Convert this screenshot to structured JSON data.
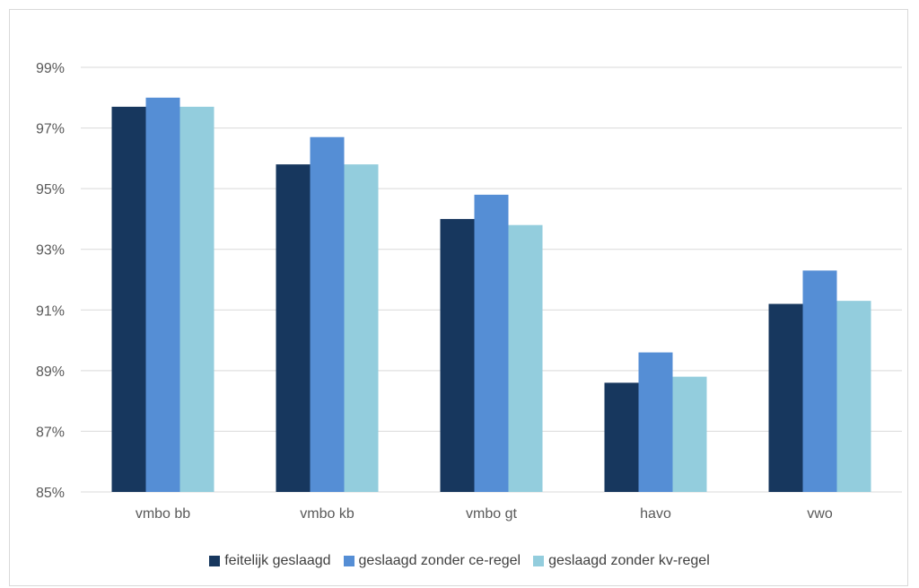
{
  "chart_data": {
    "type": "bar",
    "title": "",
    "xlabel": "",
    "ylabel": "",
    "categories": [
      "vmbo bb",
      "vmbo kb",
      "vmbo gt",
      "havo",
      "vwo"
    ],
    "series": [
      {
        "name": "feitelijk geslaagd",
        "color": "#17375e",
        "values": [
          97.7,
          95.8,
          94.0,
          88.6,
          91.2
        ]
      },
      {
        "name": "geslaagd zonder ce-regel",
        "color": "#558ed5",
        "values": [
          98.0,
          96.7,
          94.8,
          89.6,
          92.3
        ]
      },
      {
        "name": "geslaagd zonder kv-regel",
        "color": "#93cddd",
        "values": [
          97.7,
          95.8,
          93.8,
          88.8,
          91.3
        ]
      }
    ],
    "ylim": [
      85,
      99
    ],
    "yticks": [
      85,
      87,
      89,
      91,
      93,
      95,
      97,
      99
    ],
    "ytick_labels": [
      "85%",
      "87%",
      "89%",
      "91%",
      "93%",
      "95%",
      "97%",
      "99%"
    ],
    "grid": true,
    "gridline_color": "#d9d9d9",
    "legend_position": "bottom"
  }
}
